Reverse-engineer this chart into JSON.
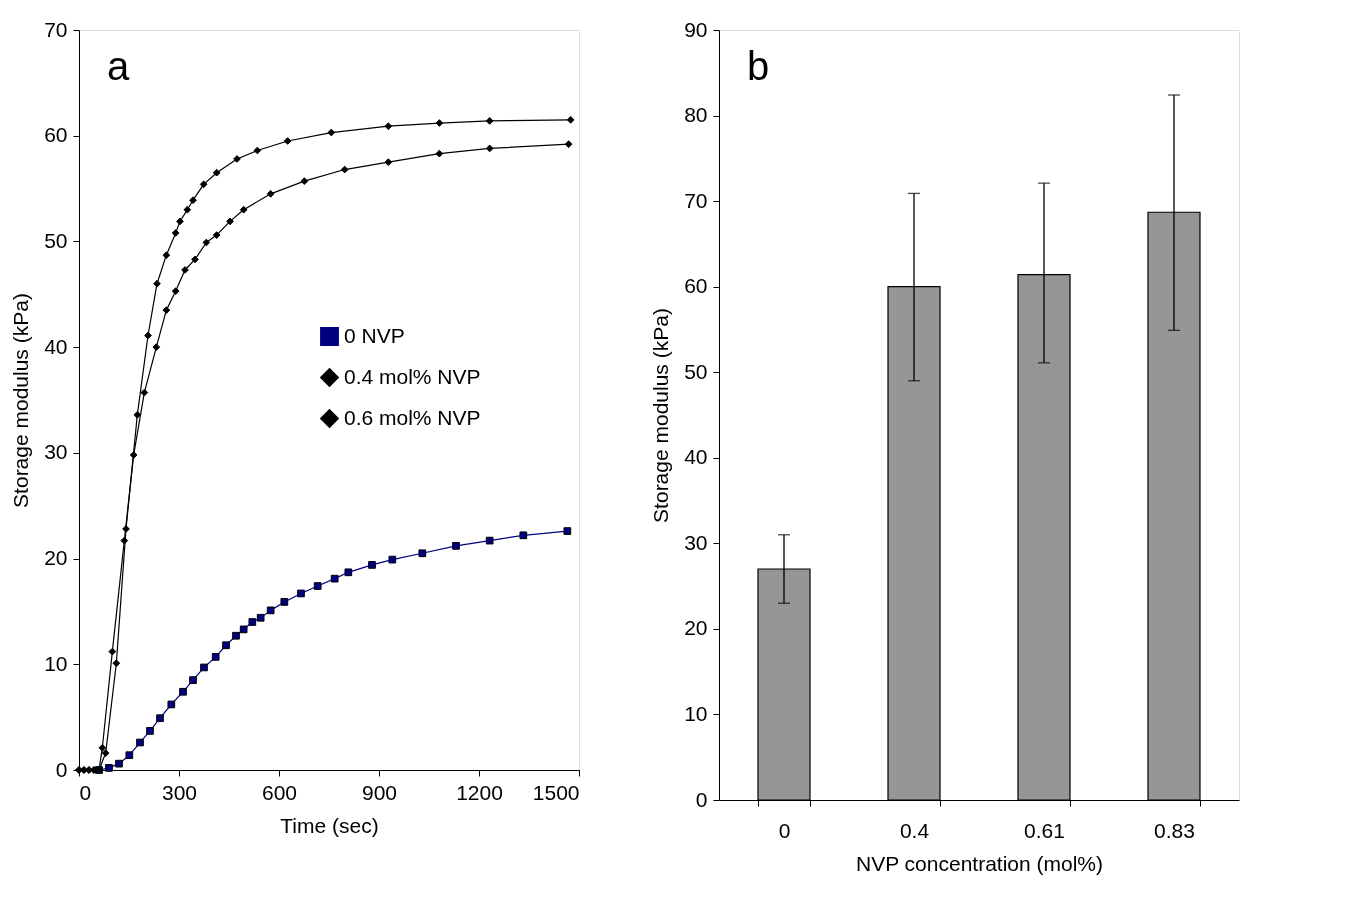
{
  "chart_data": [
    {
      "type": "line",
      "annotations": [
        "a"
      ],
      "xlabel": "Time (sec)",
      "ylabel": "Storage modulus (kPa)",
      "xlim": [
        0,
        1500
      ],
      "xticks": [
        0,
        300,
        600,
        900,
        1200,
        1500
      ],
      "ylim": [
        0,
        70
      ],
      "yticks": [
        0,
        10,
        20,
        30,
        40,
        50,
        60,
        70
      ],
      "legend": "right",
      "line_style": "solid",
      "series": [
        {
          "name": "0 NVP",
          "color": "#000080",
          "marker": "square",
          "x": [
            60,
            90,
            120,
            151,
            183,
            213,
            243,
            277,
            312,
            342,
            375,
            410,
            441,
            471,
            494,
            520,
            545,
            575,
            616,
            666,
            716,
            767,
            808,
            879,
            940,
            1030,
            1131,
            1232,
            1333,
            1465
          ],
          "values": [
            0,
            0.2,
            0.6,
            1.4,
            2.6,
            3.7,
            4.9,
            6.2,
            7.4,
            8.5,
            9.7,
            10.7,
            11.8,
            12.7,
            13.3,
            14.0,
            14.4,
            15.1,
            15.9,
            16.7,
            17.4,
            18.1,
            18.7,
            19.4,
            19.9,
            20.5,
            21.2,
            21.7,
            22.2,
            22.6
          ]
        },
        {
          "name": "0.4 mol% NVP",
          "color": "#000000",
          "marker": "diamond",
          "x": [
            0,
            15,
            30,
            45,
            60,
            70,
            100,
            136,
            164,
            196,
            232,
            262,
            290,
            318,
            348,
            382,
            413,
            453,
            494,
            575,
            676,
            797,
            928,
            1081,
            1232,
            1469
          ],
          "values": [
            0,
            0,
            0,
            0,
            0,
            2.1,
            11.2,
            21.7,
            29.8,
            35.7,
            40.0,
            43.5,
            45.3,
            47.3,
            48.3,
            49.9,
            50.6,
            51.9,
            53.0,
            54.5,
            55.7,
            56.8,
            57.5,
            58.3,
            58.8,
            59.2
          ]
        },
        {
          "name": "0.6 mol% NVP",
          "color": "#000000",
          "marker": "diamond",
          "x": [
            0,
            15,
            30,
            45,
            60,
            80,
            112,
            141,
            175,
            207,
            234,
            262,
            290,
            303,
            325,
            342,
            374,
            413,
            474,
            535,
            626,
            757,
            928,
            1081,
            1232,
            1475
          ],
          "values": [
            0,
            0,
            0,
            0,
            0,
            1.6,
            10.1,
            22.8,
            33.6,
            41.1,
            46.0,
            48.7,
            50.8,
            51.9,
            53.0,
            53.9,
            55.4,
            56.5,
            57.8,
            58.6,
            59.5,
            60.3,
            60.9,
            61.2,
            61.4,
            61.5
          ]
        }
      ]
    },
    {
      "type": "bar",
      "annotations": [
        "b"
      ],
      "xlabel": "NVP concentration (mol%)",
      "ylabel": "Storage modulus (kPa)",
      "categories": [
        "0",
        "0.4",
        "0.61",
        "0.83"
      ],
      "ylim": [
        0,
        90
      ],
      "yticks": [
        0,
        10,
        20,
        30,
        40,
        50,
        60,
        70,
        80,
        90
      ],
      "color": "#969696",
      "values": [
        27.0,
        60.0,
        61.4,
        68.7
      ],
      "errors": [
        [
          23.0,
          31.0
        ],
        [
          49.0,
          70.9
        ],
        [
          51.1,
          72.1
        ],
        [
          54.9,
          82.4
        ]
      ]
    }
  ]
}
